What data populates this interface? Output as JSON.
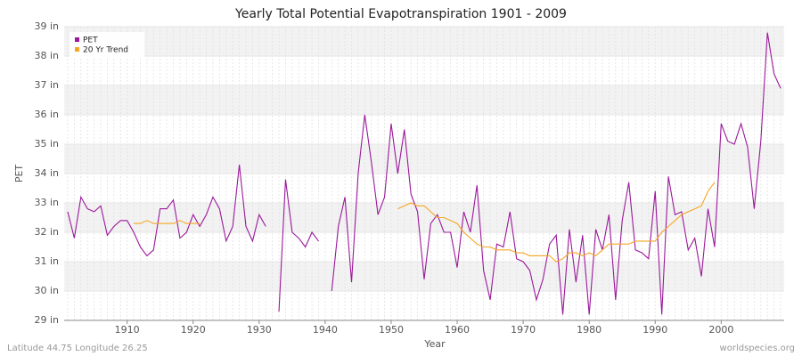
{
  "chart_data": {
    "type": "line",
    "title": "Yearly Total Potential Evapotranspiration 1901 - 2009",
    "x_label": "Year",
    "y_label": "PET",
    "footer_left": "Latitude 44.75 Longitude 26.25",
    "footer_right": "worldspecies.org",
    "x": [
      1901,
      1902,
      1903,
      1904,
      1905,
      1906,
      1907,
      1908,
      1909,
      1910,
      1911,
      1912,
      1913,
      1914,
      1915,
      1916,
      1917,
      1918,
      1919,
      1920,
      1921,
      1922,
      1923,
      1924,
      1925,
      1926,
      1927,
      1928,
      1929,
      1930,
      1931,
      1932,
      1933,
      1934,
      1935,
      1936,
      1937,
      1938,
      1939,
      1940,
      1941,
      1942,
      1943,
      1944,
      1945,
      1946,
      1947,
      1948,
      1949,
      1950,
      1951,
      1952,
      1953,
      1954,
      1955,
      1956,
      1957,
      1958,
      1959,
      1960,
      1961,
      1962,
      1963,
      1964,
      1965,
      1966,
      1967,
      1968,
      1969,
      1970,
      1971,
      1972,
      1973,
      1974,
      1975,
      1976,
      1977,
      1978,
      1979,
      1980,
      1981,
      1982,
      1983,
      1984,
      1985,
      1986,
      1987,
      1988,
      1989,
      1990,
      1991,
      1992,
      1993,
      1994,
      1995,
      1996,
      1997,
      1998,
      1999,
      2000,
      2001,
      2002,
      2003,
      2004,
      2005,
      2006,
      2007,
      2008,
      2009
    ],
    "series": [
      {
        "name": "PET",
        "color": "#9b189b",
        "values": [
          32.7,
          31.8,
          33.2,
          32.8,
          32.7,
          32.9,
          31.9,
          32.2,
          32.4,
          32.4,
          32.0,
          31.5,
          31.2,
          31.4,
          32.8,
          32.8,
          33.1,
          31.8,
          32.0,
          32.6,
          32.2,
          32.6,
          33.2,
          32.8,
          31.7,
          32.2,
          34.3,
          32.2,
          31.7,
          32.6,
          32.2,
          null,
          29.3,
          33.8,
          32.0,
          31.8,
          31.5,
          32.0,
          31.7,
          null,
          30.0,
          32.2,
          33.2,
          30.3,
          34.0,
          36.0,
          34.4,
          32.6,
          33.2,
          35.7,
          34.0,
          35.5,
          33.3,
          32.7,
          30.4,
          32.3,
          32.6,
          32.0,
          32.0,
          30.8,
          32.7,
          32.0,
          33.6,
          30.7,
          29.7,
          31.6,
          31.5,
          32.7,
          31.1,
          31.0,
          30.7,
          29.7,
          30.4,
          31.6,
          31.9,
          29.2,
          32.1,
          30.3,
          31.9,
          29.2,
          32.1,
          31.4,
          32.6,
          29.7,
          32.4,
          33.7,
          31.4,
          31.3,
          31.1,
          33.4,
          29.2,
          33.9,
          32.6,
          32.7,
          31.4,
          31.8,
          30.5,
          32.8,
          31.5,
          35.7,
          35.1,
          35.0,
          35.7,
          34.9,
          32.8,
          35.1,
          38.8,
          37.4,
          36.9
        ]
      },
      {
        "name": "20 Yr Trend",
        "color": "#f5a623",
        "values": [
          null,
          null,
          null,
          null,
          null,
          null,
          null,
          null,
          null,
          null,
          32.3,
          32.3,
          32.4,
          32.3,
          32.3,
          32.3,
          32.3,
          32.4,
          32.3,
          32.3,
          32.3,
          null,
          null,
          null,
          null,
          null,
          null,
          null,
          null,
          null,
          null,
          null,
          null,
          null,
          null,
          null,
          null,
          null,
          null,
          null,
          null,
          null,
          null,
          null,
          null,
          null,
          null,
          null,
          null,
          null,
          32.8,
          32.9,
          33.0,
          32.9,
          32.9,
          32.7,
          32.5,
          32.5,
          32.4,
          32.3,
          32.0,
          31.8,
          31.6,
          31.5,
          31.5,
          31.4,
          31.4,
          31.4,
          31.3,
          31.3,
          31.2,
          31.2,
          31.2,
          31.2,
          31.0,
          31.1,
          31.3,
          31.3,
          31.2,
          31.3,
          31.2,
          31.4,
          31.6,
          31.6,
          31.6,
          31.6,
          31.7,
          31.7,
          31.7,
          31.7,
          32.0,
          32.2,
          32.4,
          32.6,
          32.7,
          32.8,
          32.9,
          33.4,
          33.7,
          null,
          null,
          null,
          null,
          null,
          null,
          null,
          null,
          null,
          null
        ]
      }
    ],
    "xlim": [
      1901,
      2009
    ],
    "xticks": [
      1910,
      1920,
      1930,
      1940,
      1950,
      1960,
      1970,
      1980,
      1990,
      2000
    ],
    "ylim": [
      29,
      39
    ],
    "yticks": [
      {
        "value": 29,
        "label": "29 in"
      },
      {
        "value": 30,
        "label": "30 in"
      },
      {
        "value": 31,
        "label": "31 in"
      },
      {
        "value": 32,
        "label": "32 in"
      },
      {
        "value": 33,
        "label": "33 in"
      },
      {
        "value": 34,
        "label": "34 in"
      },
      {
        "value": 35,
        "label": "35 in"
      },
      {
        "value": 36,
        "label": "36 in"
      },
      {
        "value": 37,
        "label": "37 in"
      },
      {
        "value": 38,
        "label": "38 in"
      },
      {
        "value": 39,
        "label": "39 in"
      }
    ],
    "grid": true,
    "legend": "top-left"
  }
}
